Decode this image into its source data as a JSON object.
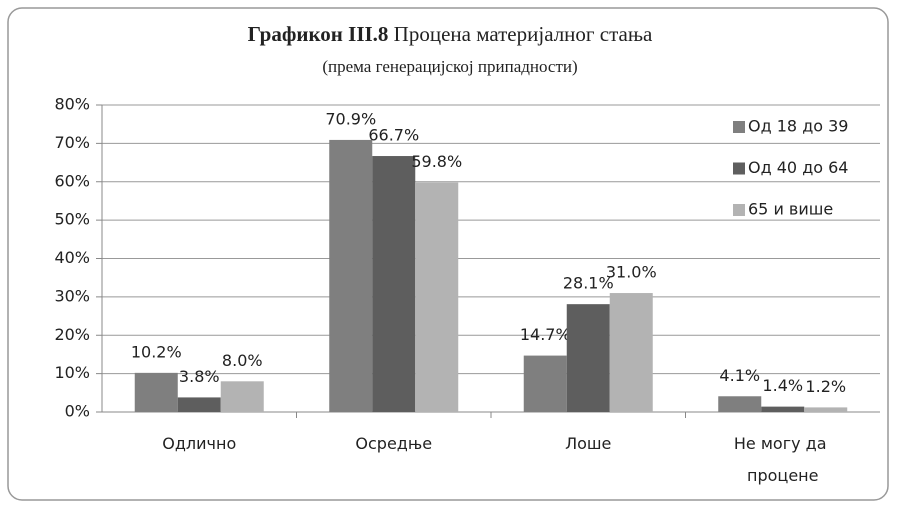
{
  "chart_data": {
    "type": "bar",
    "title_number": "Графикон III.8",
    "title": "Процена материјалног стања",
    "subtitle": "(према генерацијској припадности)",
    "categories": [
      "Одлично",
      "Осредње",
      "Лоше",
      "Не могу да процене"
    ],
    "series": [
      {
        "name": "Од 18 до 39",
        "color": "#7f7f7f",
        "values": [
          10.2,
          70.9,
          14.7,
          4.1
        ],
        "value_labels": [
          "10.2%",
          "70.9%",
          "14.7%",
          "4.1%"
        ]
      },
      {
        "name": "Од 40 до 64",
        "color": "#5e5e5e",
        "values": [
          3.8,
          66.7,
          28.1,
          1.4
        ],
        "value_labels": [
          "3.8%",
          "66.7%",
          "28.1%",
          "1.4%"
        ]
      },
      {
        "name": "65 и више",
        "color": "#b3b3b3",
        "values": [
          8.0,
          59.8,
          31.0,
          1.2
        ],
        "value_labels": [
          "8.0%",
          "59.8%",
          "31.0%",
          "1.2%"
        ]
      }
    ],
    "ylim": [
      0,
      80
    ],
    "yticks": [
      {
        "value": 0,
        "label": "0%"
      },
      {
        "value": 10,
        "label": "10%"
      },
      {
        "value": 20,
        "label": "20%"
      },
      {
        "value": 30,
        "label": "30%"
      },
      {
        "value": 40,
        "label": "40%"
      },
      {
        "value": 50,
        "label": "50%"
      },
      {
        "value": 60,
        "label": "60%"
      },
      {
        "value": 70,
        "label": "70%"
      },
      {
        "value": 80,
        "label": "80%"
      }
    ],
    "grid": true,
    "legend": "right"
  }
}
